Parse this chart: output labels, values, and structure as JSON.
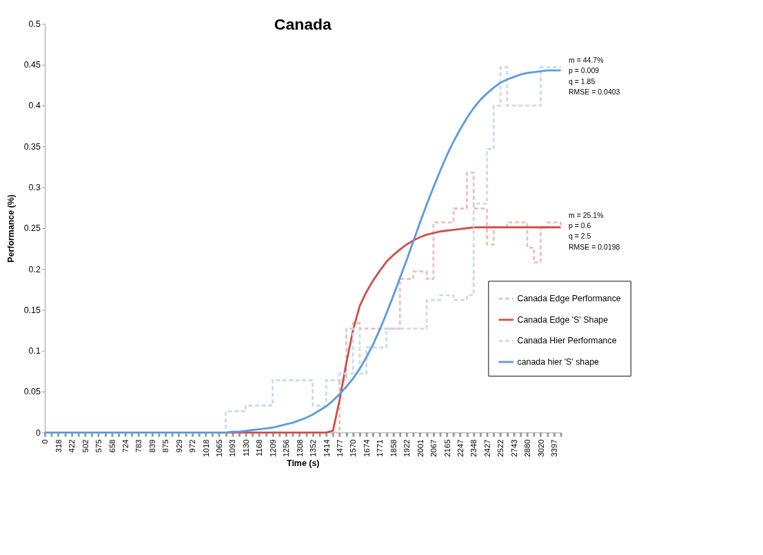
{
  "chart_data": {
    "type": "line",
    "title": "Canada",
    "xlabel": "Time (s)",
    "ylabel": "Performance (%)",
    "categories": [
      "0",
      null,
      "318",
      null,
      "422",
      null,
      "502",
      null,
      "575",
      null,
      "658",
      null,
      "724",
      null,
      "783",
      null,
      "839",
      null,
      "875",
      null,
      "929",
      null,
      "972",
      null,
      "1018",
      null,
      "1065",
      null,
      "1093",
      null,
      "1130",
      null,
      "1168",
      null,
      "1209",
      null,
      "1256",
      null,
      "1308",
      null,
      "1352",
      null,
      "1414",
      null,
      "1477",
      null,
      "1570",
      null,
      "1674",
      null,
      "1771",
      null,
      "1858",
      null,
      "1922",
      null,
      "2001",
      null,
      "2067",
      null,
      "2165",
      null,
      "2247",
      null,
      "2348",
      null,
      "2427",
      null,
      "2522",
      null,
      "2743",
      null,
      "2880",
      null,
      "3020",
      null,
      "3397",
      null
    ],
    "ylim": [
      0,
      0.5
    ],
    "yticks": [
      0,
      0.05,
      0.1,
      0.15,
      0.2,
      0.25,
      0.3,
      0.35,
      0.4,
      0.45,
      0.5
    ],
    "legend": "bottom right",
    "series": [
      {
        "name": "Canada Edge Performance",
        "type": "step",
        "line_style": "dashed",
        "color": "#f2bfbb",
        "values": [
          0,
          0,
          0,
          0,
          0,
          0,
          0,
          0,
          0,
          0,
          0,
          0,
          0,
          0,
          0,
          0,
          0,
          0,
          0,
          0,
          0,
          0,
          0,
          0,
          0,
          0,
          0,
          0,
          0,
          0,
          0,
          0,
          0,
          0,
          0,
          0,
          0,
          0,
          0,
          0,
          0,
          0,
          0,
          0,
          0.064,
          0.127,
          0.134,
          0.127,
          0.127,
          0.127,
          0.127,
          0.127,
          0.127,
          0.188,
          0.188,
          0.197,
          0.197,
          0.188,
          0.257,
          0.257,
          0.257,
          0.274,
          0.274,
          0.318,
          0.274,
          0.274,
          0.23,
          0.251,
          0.251,
          0.257,
          0.257,
          0.257,
          0.226,
          0.208,
          0.251,
          0.257,
          0.257,
          0.251
        ]
      },
      {
        "name": "Canada Edge 'S' Shape",
        "line_style": "solid",
        "color": "#d0504a",
        "values": [
          null,
          null,
          null,
          null,
          null,
          null,
          null,
          null,
          null,
          null,
          null,
          null,
          null,
          null,
          null,
          null,
          null,
          null,
          null,
          null,
          null,
          null,
          null,
          null,
          null,
          null,
          0,
          0,
          0,
          0,
          0,
          0,
          0,
          0,
          0,
          0,
          0,
          0,
          0,
          0,
          0,
          0,
          0,
          0.002,
          0.04,
          0.085,
          0.125,
          0.155,
          0.172,
          0.186,
          0.198,
          0.209,
          0.217,
          0.224,
          0.23,
          0.235,
          0.239,
          0.242,
          0.244,
          0.246,
          0.247,
          0.248,
          0.249,
          0.25,
          0.251,
          0.251,
          0.251,
          0.251,
          0.251,
          0.251,
          0.251,
          0.251,
          0.251,
          0.251,
          0.251,
          0.251,
          0.251,
          0.251
        ]
      },
      {
        "name": "Canada Hier Performance",
        "type": "step",
        "line_style": "dashed",
        "color": "#c9dbf2",
        "values": [
          0,
          0,
          0,
          0,
          0,
          0,
          0,
          0,
          0,
          0,
          0,
          0,
          0,
          0,
          0,
          0,
          0,
          0,
          0,
          0,
          0,
          0,
          0,
          0,
          0,
          0,
          0,
          0.026,
          0.026,
          0.026,
          0.033,
          0.033,
          0.033,
          0.033,
          0.064,
          0.064,
          0.064,
          0.064,
          0.064,
          0.064,
          0.033,
          0.033,
          0.064,
          0.064,
          0.072,
          0.072,
          0.127,
          0.072,
          0.104,
          0.104,
          0.104,
          0.127,
          0.127,
          0.127,
          0.127,
          0.127,
          0.127,
          0.162,
          0.162,
          0.168,
          0.168,
          0.162,
          0.162,
          0.168,
          0.28,
          0.28,
          0.347,
          0.4,
          0.447,
          0.4,
          0.4,
          0.4,
          0.4,
          0.4,
          0.447,
          0.447,
          0.447,
          0.447
        ]
      },
      {
        "name": "canada hier 'S' shape",
        "line_style": "solid",
        "color": "#5b9bde",
        "values": [
          0,
          0,
          0,
          0,
          0,
          0,
          0,
          0,
          0,
          0,
          0,
          0,
          0,
          0,
          0,
          0,
          0,
          0,
          0,
          0,
          0,
          0,
          0,
          0,
          0,
          0,
          0,
          0,
          0.001,
          0.001,
          0.002,
          0.003,
          0.004,
          0.005,
          0.006,
          0.008,
          0.01,
          0.012,
          0.015,
          0.018,
          0.022,
          0.027,
          0.032,
          0.039,
          0.047,
          0.056,
          0.066,
          0.078,
          0.092,
          0.108,
          0.126,
          0.146,
          0.167,
          0.189,
          0.211,
          0.234,
          0.257,
          0.279,
          0.3,
          0.32,
          0.339,
          0.356,
          0.371,
          0.385,
          0.397,
          0.407,
          0.415,
          0.422,
          0.428,
          0.432,
          0.435,
          0.438,
          0.44,
          0.441,
          0.442,
          0.443,
          0.443,
          0.443
        ]
      }
    ],
    "annotations": [
      "m = 44.7%\np = 0.009\nq = 1.85\nRMSE = 0.0403",
      "m = 25.1%\np = 0.6\nq = 2.5\nRMSE = 0.0198"
    ]
  }
}
